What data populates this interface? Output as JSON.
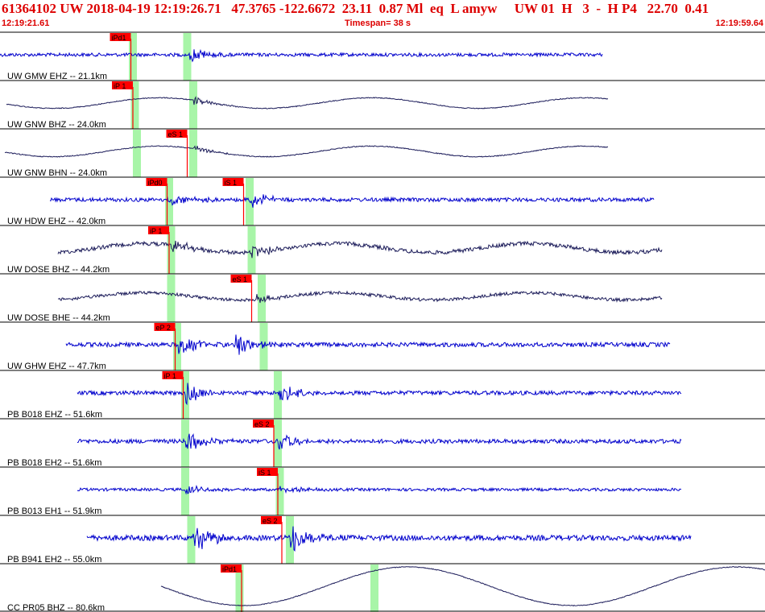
{
  "header": {
    "title": "61364102 UW 2018-04-19 12:19:26.71   47.3765 -122.6672  23.11  0.87 Ml  eq  L amyw     UW 01  H   3  -  H P4   22.70  0.41",
    "start_time": "12:19:21.61",
    "end_time": "12:19:59.64",
    "timespan": "Timespan=  38 s"
  },
  "colors": {
    "blue_trace": "#0000cc",
    "dark_trace": "#1c1c5a",
    "pick": "#ff0000",
    "window": "#a8f5a8",
    "separator": "#000000"
  },
  "traces": [
    {
      "label": "UW GMW EHZ -- 21.1km",
      "color": "blue_trace",
      "amp": 0.7,
      "noise": "hf",
      "picks": [
        {
          "t": 6.5,
          "label": "iPd1"
        }
      ],
      "windows": [
        6.6,
        9.3
      ],
      "bursts": [
        9.4
      ]
    },
    {
      "label": "UW GNW BHZ -- 24.0km",
      "color": "dark_trace",
      "amp": 0.55,
      "noise": "lf",
      "picks": [
        {
          "t": 6.6,
          "label": "iP 1"
        }
      ],
      "windows": [
        6.7,
        9.6
      ],
      "bursts": [
        9.6
      ]
    },
    {
      "label": "UW GNW BHN -- 24.0km",
      "color": "dark_trace",
      "amp": 0.55,
      "noise": "lf",
      "picks": [
        {
          "t": 9.3,
          "label": "eS 1"
        }
      ],
      "windows": [
        6.8,
        9.6
      ],
      "bursts": [
        9.6
      ]
    },
    {
      "label": "UW HDW EHZ -- 42.0km",
      "color": "blue_trace",
      "amp": 0.8,
      "noise": "hf",
      "picks": [
        {
          "t": 8.3,
          "label": "iPd0"
        },
        {
          "t": 12.1,
          "label": "iS 1"
        }
      ],
      "windows": [
        8.4,
        12.4
      ],
      "bursts": [
        8.4,
        12.4
      ]
    },
    {
      "label": "UW DOSE BHZ -- 44.2km",
      "color": "dark_trace",
      "amp": 0.7,
      "noise": "mix",
      "picks": [
        {
          "t": 8.4,
          "label": "iP 1"
        }
      ],
      "windows": [
        8.5,
        12.5
      ],
      "bursts": [
        8.5,
        12.5
      ]
    },
    {
      "label": "UW DOSE BHE -- 44.2km",
      "color": "dark_trace",
      "amp": 0.55,
      "noise": "mix",
      "picks": [
        {
          "t": 12.5,
          "label": "eS 1"
        }
      ],
      "windows": [
        8.5,
        13.0
      ],
      "bursts": [
        12.7
      ]
    },
    {
      "label": "UW GHW EHZ -- 47.7km",
      "color": "blue_trace",
      "amp": 0.9,
      "noise": "hf",
      "picks": [
        {
          "t": 8.7,
          "label": "eP 2"
        }
      ],
      "windows": [
        8.8,
        13.1
      ],
      "bursts": [
        8.8,
        11.6
      ]
    },
    {
      "label": "PB B018 EHZ -- 51.6km",
      "color": "blue_trace",
      "amp": 0.85,
      "noise": "hf",
      "picks": [
        {
          "t": 9.1,
          "label": "iP 1"
        }
      ],
      "windows": [
        9.2,
        13.8
      ],
      "bursts": [
        9.2,
        13.8
      ]
    },
    {
      "label": "PB B018 EH2 -- 51.6km",
      "color": "blue_trace",
      "amp": 0.85,
      "noise": "hf",
      "picks": [
        {
          "t": 13.6,
          "label": "eS 2"
        }
      ],
      "windows": [
        9.2,
        13.8
      ],
      "bursts": [
        9.2,
        13.8
      ]
    },
    {
      "label": "PB B013 EH1 -- 51.9km",
      "color": "blue_trace",
      "amp": 0.6,
      "noise": "hf",
      "picks": [
        {
          "t": 13.8,
          "label": "iS 1"
        }
      ],
      "windows": [
        9.2,
        13.9
      ],
      "bursts": [
        9.2,
        13.9
      ]
    },
    {
      "label": "PB B941 EH2 -- 55.0km",
      "color": "blue_trace",
      "amp": 1.1,
      "noise": "hf",
      "picks": [
        {
          "t": 14.0,
          "label": "eS 2"
        }
      ],
      "windows": [
        9.5,
        14.4
      ],
      "bursts": [
        9.5,
        14.4
      ]
    },
    {
      "label": "CC PR05 BHZ -- 80.6km",
      "color": "dark_trace",
      "amp": 1.0,
      "noise": "vlf",
      "picks": [
        {
          "t": 12.0,
          "label": "iPd1"
        }
      ],
      "windows": [
        11.9,
        18.6
      ],
      "bursts": []
    }
  ]
}
